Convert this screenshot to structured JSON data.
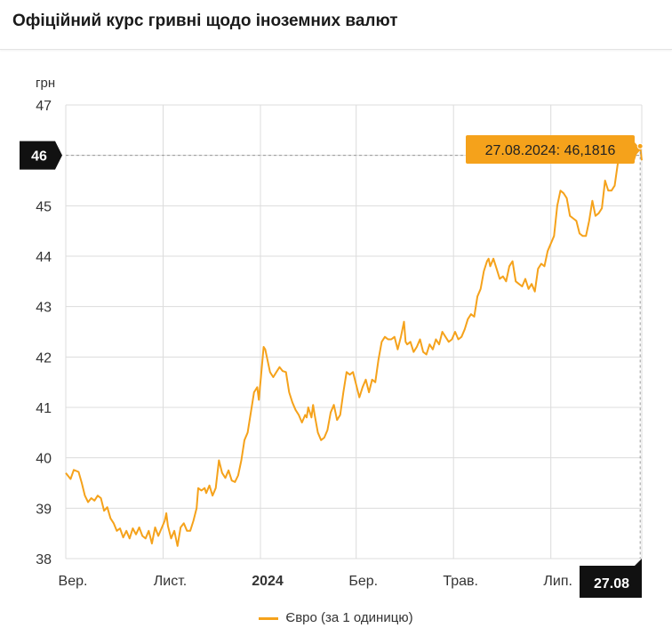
{
  "page": {
    "title": "Офіційний курс гривні щодо іноземних валют"
  },
  "colors": {
    "series": "#f5a21b",
    "grid": "#dcdcdc",
    "tooltip_bg": "#f5a21b",
    "marker_bg": "#111111"
  },
  "chart_data": {
    "type": "line",
    "title": "Офіційний курс гривні щодо іноземних валют",
    "ylabel": "грн",
    "xlabel": "",
    "ylim": [
      38,
      47
    ],
    "yticks": [
      38,
      39,
      40,
      41,
      42,
      43,
      44,
      45,
      46,
      47
    ],
    "xlim": [
      0,
      361
    ],
    "xticks": [
      {
        "pos": 0,
        "label": "Вер.",
        "bold": false
      },
      {
        "pos": 61,
        "label": "Лист.",
        "bold": false
      },
      {
        "pos": 122,
        "label": "2024",
        "bold": true
      },
      {
        "pos": 182,
        "label": "Бер.",
        "bold": false
      },
      {
        "pos": 243,
        "label": "Трав.",
        "bold": false
      },
      {
        "pos": 304,
        "label": "Лип.",
        "bold": false
      }
    ],
    "grid": true,
    "series": [
      {
        "name": "Євро (за 1 одиницю)",
        "points": [
          [
            0,
            39.7
          ],
          [
            3,
            39.58
          ],
          [
            5,
            39.76
          ],
          [
            8,
            39.72
          ],
          [
            10,
            39.5
          ],
          [
            12,
            39.25
          ],
          [
            14,
            39.12
          ],
          [
            16,
            39.2
          ],
          [
            18,
            39.15
          ],
          [
            20,
            39.25
          ],
          [
            22,
            39.2
          ],
          [
            24,
            38.95
          ],
          [
            26,
            39.02
          ],
          [
            28,
            38.8
          ],
          [
            30,
            38.7
          ],
          [
            32,
            38.55
          ],
          [
            34,
            38.6
          ],
          [
            36,
            38.42
          ],
          [
            38,
            38.55
          ],
          [
            40,
            38.4
          ],
          [
            42,
            38.6
          ],
          [
            44,
            38.48
          ],
          [
            46,
            38.62
          ],
          [
            48,
            38.45
          ],
          [
            50,
            38.4
          ],
          [
            52,
            38.55
          ],
          [
            54,
            38.3
          ],
          [
            56,
            38.62
          ],
          [
            58,
            38.45
          ],
          [
            60,
            38.6
          ],
          [
            62,
            38.75
          ],
          [
            63,
            38.9
          ],
          [
            64,
            38.65
          ],
          [
            66,
            38.4
          ],
          [
            68,
            38.55
          ],
          [
            70,
            38.25
          ],
          [
            72,
            38.62
          ],
          [
            74,
            38.7
          ],
          [
            76,
            38.55
          ],
          [
            78,
            38.55
          ],
          [
            80,
            38.75
          ],
          [
            82,
            39.0
          ],
          [
            83,
            39.4
          ],
          [
            85,
            39.35
          ],
          [
            87,
            39.4
          ],
          [
            88,
            39.3
          ],
          [
            90,
            39.45
          ],
          [
            92,
            39.25
          ],
          [
            94,
            39.4
          ],
          [
            96,
            39.95
          ],
          [
            98,
            39.7
          ],
          [
            100,
            39.6
          ],
          [
            102,
            39.75
          ],
          [
            104,
            39.55
          ],
          [
            106,
            39.52
          ],
          [
            108,
            39.65
          ],
          [
            110,
            39.95
          ],
          [
            112,
            40.35
          ],
          [
            114,
            40.5
          ],
          [
            116,
            40.9
          ],
          [
            118,
            41.3
          ],
          [
            120,
            41.4
          ],
          [
            121,
            41.15
          ],
          [
            122,
            41.5
          ],
          [
            124,
            42.2
          ],
          [
            125,
            42.15
          ],
          [
            126,
            42.0
          ],
          [
            128,
            41.7
          ],
          [
            130,
            41.6
          ],
          [
            132,
            41.7
          ],
          [
            134,
            41.8
          ],
          [
            136,
            41.72
          ],
          [
            138,
            41.7
          ],
          [
            140,
            41.3
          ],
          [
            142,
            41.1
          ],
          [
            144,
            40.95
          ],
          [
            146,
            40.85
          ],
          [
            148,
            40.7
          ],
          [
            150,
            40.85
          ],
          [
            151,
            40.8
          ],
          [
            152,
            41.0
          ],
          [
            154,
            40.8
          ],
          [
            155,
            41.05
          ],
          [
            156,
            40.85
          ],
          [
            158,
            40.5
          ],
          [
            160,
            40.35
          ],
          [
            162,
            40.4
          ],
          [
            164,
            40.55
          ],
          [
            166,
            40.9
          ],
          [
            168,
            41.05
          ],
          [
            170,
            40.75
          ],
          [
            172,
            40.85
          ],
          [
            174,
            41.3
          ],
          [
            176,
            41.7
          ],
          [
            178,
            41.65
          ],
          [
            180,
            41.7
          ],
          [
            182,
            41.45
          ],
          [
            184,
            41.2
          ],
          [
            186,
            41.4
          ],
          [
            188,
            41.55
          ],
          [
            190,
            41.3
          ],
          [
            192,
            41.55
          ],
          [
            194,
            41.5
          ],
          [
            196,
            41.95
          ],
          [
            198,
            42.3
          ],
          [
            200,
            42.4
          ],
          [
            202,
            42.35
          ],
          [
            204,
            42.35
          ],
          [
            206,
            42.4
          ],
          [
            208,
            42.15
          ],
          [
            210,
            42.4
          ],
          [
            212,
            42.7
          ],
          [
            213,
            42.3
          ],
          [
            214,
            42.25
          ],
          [
            216,
            42.3
          ],
          [
            218,
            42.1
          ],
          [
            220,
            42.2
          ],
          [
            222,
            42.35
          ],
          [
            224,
            42.1
          ],
          [
            226,
            42.05
          ],
          [
            228,
            42.25
          ],
          [
            230,
            42.15
          ],
          [
            232,
            42.35
          ],
          [
            234,
            42.25
          ],
          [
            236,
            42.5
          ],
          [
            238,
            42.4
          ],
          [
            240,
            42.3
          ],
          [
            242,
            42.35
          ],
          [
            244,
            42.5
          ],
          [
            246,
            42.35
          ],
          [
            248,
            42.4
          ],
          [
            250,
            42.55
          ],
          [
            252,
            42.75
          ],
          [
            254,
            42.85
          ],
          [
            256,
            42.8
          ],
          [
            258,
            43.2
          ],
          [
            260,
            43.35
          ],
          [
            262,
            43.7
          ],
          [
            264,
            43.9
          ],
          [
            265,
            43.95
          ],
          [
            266,
            43.8
          ],
          [
            268,
            43.95
          ],
          [
            270,
            43.75
          ],
          [
            272,
            43.55
          ],
          [
            274,
            43.6
          ],
          [
            276,
            43.5
          ],
          [
            278,
            43.8
          ],
          [
            280,
            43.9
          ],
          [
            282,
            43.5
          ],
          [
            284,
            43.45
          ],
          [
            286,
            43.4
          ],
          [
            288,
            43.55
          ],
          [
            290,
            43.35
          ],
          [
            292,
            43.45
          ],
          [
            294,
            43.3
          ],
          [
            296,
            43.75
          ],
          [
            298,
            43.85
          ],
          [
            300,
            43.8
          ],
          [
            302,
            44.1
          ],
          [
            304,
            44.25
          ],
          [
            306,
            44.4
          ],
          [
            308,
            45.0
          ],
          [
            310,
            45.3
          ],
          [
            312,
            45.25
          ],
          [
            314,
            45.15
          ],
          [
            316,
            44.8
          ],
          [
            318,
            44.75
          ],
          [
            320,
            44.7
          ],
          [
            322,
            44.45
          ],
          [
            324,
            44.4
          ],
          [
            326,
            44.4
          ],
          [
            328,
            44.7
          ],
          [
            330,
            45.1
          ],
          [
            332,
            44.8
          ],
          [
            334,
            44.85
          ],
          [
            336,
            44.95
          ],
          [
            338,
            45.5
          ],
          [
            340,
            45.3
          ],
          [
            342,
            45.3
          ],
          [
            344,
            45.4
          ],
          [
            346,
            45.85
          ],
          [
            348,
            45.9
          ],
          [
            350,
            46.15
          ],
          [
            352,
            46.1
          ],
          [
            354,
            46.0
          ],
          [
            356,
            45.9
          ],
          [
            358,
            46.1
          ],
          [
            360,
            46.18
          ],
          [
            361,
            45.9
          ]
        ]
      }
    ],
    "tooltip": {
      "x": 360,
      "value": 46.1816,
      "label": "27.08.2024: 46,1816"
    },
    "crosshair": {
      "y_label": "46",
      "x_label": "27.08"
    }
  },
  "legend": {
    "label": "Євро (за 1 одиницю)"
  }
}
